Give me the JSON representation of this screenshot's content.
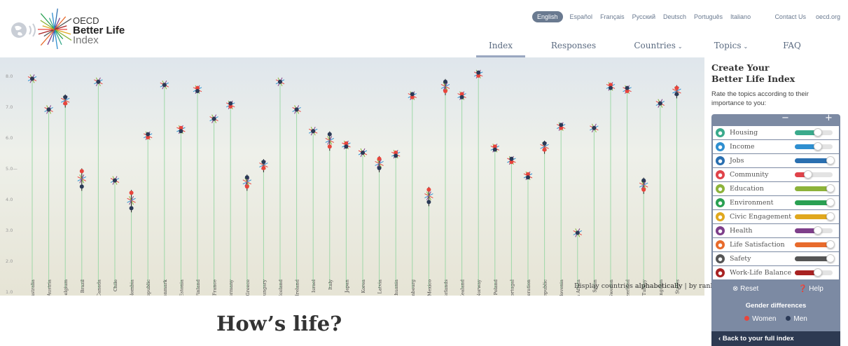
{
  "logo": {
    "oecd": "OECD",
    "better_life": "Better Life",
    "index": "Index"
  },
  "languages": [
    {
      "label": "English",
      "active": true
    },
    {
      "label": "Español",
      "active": false
    },
    {
      "label": "Français",
      "active": false
    },
    {
      "label": "Русский",
      "active": false
    },
    {
      "label": "Deutsch",
      "active": false
    },
    {
      "label": "Português",
      "active": false
    },
    {
      "label": "Italiano",
      "active": false
    }
  ],
  "top_links": {
    "contact": "Contact Us",
    "oecd_org": "oecd.org"
  },
  "nav": [
    {
      "label": "Index",
      "active": true,
      "dropdown": false
    },
    {
      "label": "Responses",
      "active": false,
      "dropdown": false
    },
    {
      "label": "Countries",
      "active": false,
      "dropdown": true
    },
    {
      "label": "Topics",
      "active": false,
      "dropdown": true
    },
    {
      "label": "FAQ",
      "active": false,
      "dropdown": false
    }
  ],
  "chart_data": {
    "type": "scatter",
    "y_ticks": [
      "1.0",
      "2.0",
      "3.0",
      "4.0",
      "5.0",
      "6.0",
      "7.0",
      "8.0"
    ],
    "ylim": [
      1,
      8.5
    ],
    "grid": false,
    "categories": [
      "Australia",
      "Austria",
      "Belgium",
      "Brazil",
      "Canada",
      "Chile",
      "Colombia",
      "Czech Republic",
      "Denmark",
      "Estonia",
      "Finland",
      "France",
      "Germany",
      "Greece",
      "Hungary",
      "Iceland",
      "Ireland",
      "Israel",
      "Italy",
      "Japan",
      "Korea",
      "Latvia",
      "Lithuania",
      "Luxembourg",
      "Mexico",
      "Netherlands",
      "New Zealand",
      "Norway",
      "Poland",
      "Portugal",
      "Russian Federation",
      "Slovak Republic",
      "Slovenia",
      "South Africa",
      "Spain",
      "Sweden",
      "Switzerland",
      "Turkey",
      "United Kingdom",
      "United States"
    ],
    "visible_labels": [
      "Australia",
      "Austria",
      "Belgium",
      "Brazil",
      "Canada",
      "Chile",
      "Colombia",
      "ech Republic",
      "Denmark",
      "Estonia",
      "Finland",
      "France",
      "Germany",
      "Greece",
      "Hungary",
      "Iceland",
      "Ireland",
      "Israel",
      "Italy",
      "Japan",
      "Korea",
      "Latvia",
      "Lithuania",
      "Luxembourg",
      "Mexico",
      "Netherlands",
      "New Zealand",
      "Norway",
      "Poland",
      "Portugal",
      "n Federation",
      "vak Republic",
      "Slovenia",
      "South Africa",
      "Spain",
      "Sweden",
      "Switzerland",
      "Turkey",
      "ted Kingdom",
      "United States"
    ],
    "series": [
      {
        "name": "Women",
        "color": "#e8453c",
        "values": [
          7.9,
          6.9,
          7.1,
          4.9,
          7.8,
          4.6,
          4.2,
          6.0,
          7.7,
          6.3,
          7.6,
          6.6,
          7.0,
          4.4,
          5.0,
          7.8,
          6.9,
          6.2,
          5.7,
          5.8,
          5.5,
          5.3,
          5.5,
          7.3,
          4.3,
          7.5,
          7.4,
          8.0,
          5.7,
          5.2,
          4.8,
          5.6,
          6.3,
          null,
          6.3,
          7.7,
          7.5,
          4.3,
          7.1,
          7.6
        ]
      },
      {
        "name": "Men",
        "color": "#2b3a57",
        "values": [
          7.9,
          6.9,
          7.3,
          4.4,
          7.8,
          4.6,
          3.7,
          6.1,
          7.7,
          6.2,
          7.5,
          6.6,
          7.1,
          4.7,
          5.2,
          7.8,
          6.9,
          6.2,
          6.1,
          5.7,
          5.5,
          5.0,
          5.4,
          7.4,
          3.9,
          7.8,
          7.3,
          8.1,
          5.6,
          5.3,
          4.7,
          5.8,
          6.4,
          2.9,
          6.3,
          7.6,
          7.6,
          4.6,
          7.1,
          7.4
        ]
      }
    ]
  },
  "display_options": {
    "prefix": "Display countries ",
    "alphabetically": "alphabetically",
    "separator": " | ",
    "by_rank": "by rank"
  },
  "panel": {
    "heading_line1": "Create Your",
    "heading_line2": "Better Life Index",
    "intro": "Rate the topics according to their importance to you:",
    "zoom_minus": "−",
    "zoom_plus": "+",
    "topics": [
      {
        "label": "Housing",
        "color": "#3aaa8c",
        "icon": "house-icon",
        "level": 0.62
      },
      {
        "label": "Income",
        "color": "#2f8fd0",
        "icon": "income-icon",
        "level": 0.62
      },
      {
        "label": "Jobs",
        "color": "#2a6fb0",
        "icon": "jobs-icon",
        "level": 0.95
      },
      {
        "label": "Community",
        "color": "#e0434a",
        "icon": "community-icon",
        "level": 0.35
      },
      {
        "label": "Education",
        "color": "#8db33a",
        "icon": "education-icon",
        "level": 0.95
      },
      {
        "label": "Environment",
        "color": "#2aa052",
        "icon": "environment-icon",
        "level": 0.95
      },
      {
        "label": "Civic Engagement",
        "color": "#e0a81e",
        "icon": "civic-icon",
        "level": 0.95
      },
      {
        "label": "Health",
        "color": "#7e3f8a",
        "icon": "health-icon",
        "level": 0.62
      },
      {
        "label": "Life Satisfaction",
        "color": "#e86b2c",
        "icon": "life-satisfaction-icon",
        "level": 0.95
      },
      {
        "label": "Safety",
        "color": "#555555",
        "icon": "safety-icon",
        "level": 0.95
      },
      {
        "label": "Work-Life Balance",
        "color": "#a82222",
        "icon": "work-life-icon",
        "level": 0.62
      }
    ],
    "reset": "Reset",
    "help": "Help",
    "gender_title": "Gender differences",
    "women": "Women",
    "men": "Men",
    "back": "Back to your full index"
  },
  "section_title": "How’s life?"
}
